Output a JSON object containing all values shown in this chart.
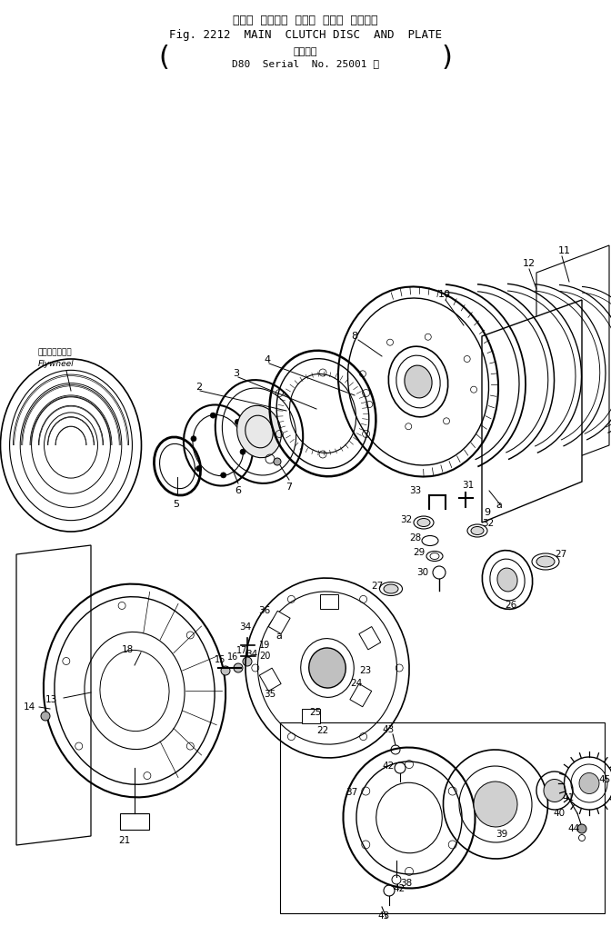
{
  "title_jp": "メイン  クラッチ  デスク  および  プレート",
  "title_en": "Fig. 2212  MAIN  CLUTCH DISC  AND  PLATE",
  "subtitle_jp": "適用号機",
  "subtitle_model": "D80  Serial  No. 25001 ～",
  "bg_color": "#ffffff",
  "fig_width": 6.72,
  "fig_height": 10.19,
  "dpi": 100
}
